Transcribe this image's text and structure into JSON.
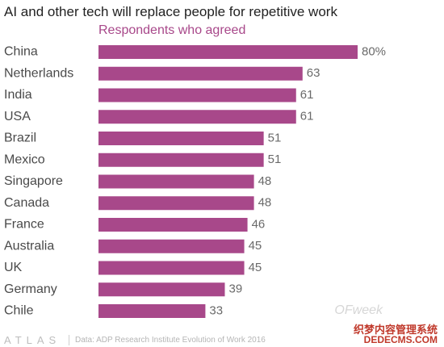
{
  "chart_data": {
    "type": "bar",
    "orientation": "horizontal",
    "title": "AI and other tech will replace people for repetitive work",
    "subtitle": "Respondents who agreed",
    "categories": [
      "China",
      "Netherlands",
      "India",
      "USA",
      "Brazil",
      "Mexico",
      "Singapore",
      "Canada",
      "France",
      "Australia",
      "UK",
      "Germany",
      "Chile"
    ],
    "values": [
      80,
      63,
      61,
      61,
      51,
      51,
      48,
      48,
      46,
      45,
      45,
      39,
      33
    ],
    "value_labels": [
      "80%",
      "63",
      "61",
      "61",
      "51",
      "51",
      "48",
      "48",
      "46",
      "45",
      "45",
      "39",
      "33"
    ],
    "xlim": [
      0,
      80
    ],
    "grid": false,
    "colors": {
      "bar": "#a8488a",
      "subtitle": "#a8488a"
    }
  },
  "footer": {
    "brand": "ATLAS",
    "source": "Data: ADP Research Institute Evolution of Work 2016"
  },
  "watermark": {
    "brand": "OFweek",
    "line1": "织梦内容管理系统",
    "line2": "DEDECMS.COM"
  }
}
